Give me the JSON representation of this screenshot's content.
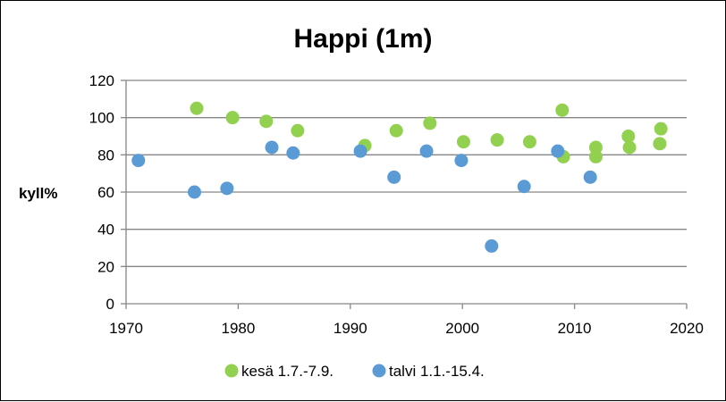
{
  "chart_data": {
    "type": "scatter",
    "title": "Happi (1m)",
    "xlabel": "",
    "ylabel": "kyll%",
    "xlim": [
      1970,
      2020
    ],
    "ylim": [
      0,
      120
    ],
    "xticks": [
      1970,
      1980,
      1990,
      2000,
      2010,
      2020
    ],
    "yticks": [
      0,
      20,
      40,
      60,
      80,
      100,
      120
    ],
    "grid": "horizontal",
    "legend_position": "bottom",
    "series": [
      {
        "name": "kesä 1.7.-7.9.",
        "color": "#92D050",
        "points": [
          [
            1976.3,
            105
          ],
          [
            1979.5,
            100
          ],
          [
            1982.5,
            98
          ],
          [
            1985.3,
            93
          ],
          [
            1991.3,
            85
          ],
          [
            1994.1,
            93
          ],
          [
            1997.1,
            97
          ],
          [
            2000.1,
            87
          ],
          [
            2003.1,
            88
          ],
          [
            2006.0,
            87
          ],
          [
            2008.9,
            104
          ],
          [
            2009.0,
            79
          ],
          [
            2011.9,
            79
          ],
          [
            2011.9,
            84
          ],
          [
            2014.8,
            90
          ],
          [
            2014.9,
            84
          ],
          [
            2017.7,
            94
          ],
          [
            2017.6,
            86
          ]
        ]
      },
      {
        "name": "talvi 1.1.-15.4.",
        "color": "#5B9BD5",
        "points": [
          [
            1971.1,
            77
          ],
          [
            1976.1,
            60
          ],
          [
            1979.0,
            62
          ],
          [
            1983.0,
            84
          ],
          [
            1984.9,
            81
          ],
          [
            1990.9,
            82
          ],
          [
            1993.9,
            68
          ],
          [
            1996.8,
            82
          ],
          [
            1999.9,
            77
          ],
          [
            2002.6,
            31
          ],
          [
            2005.5,
            63
          ],
          [
            2008.5,
            82
          ],
          [
            2011.4,
            68
          ]
        ]
      }
    ]
  }
}
